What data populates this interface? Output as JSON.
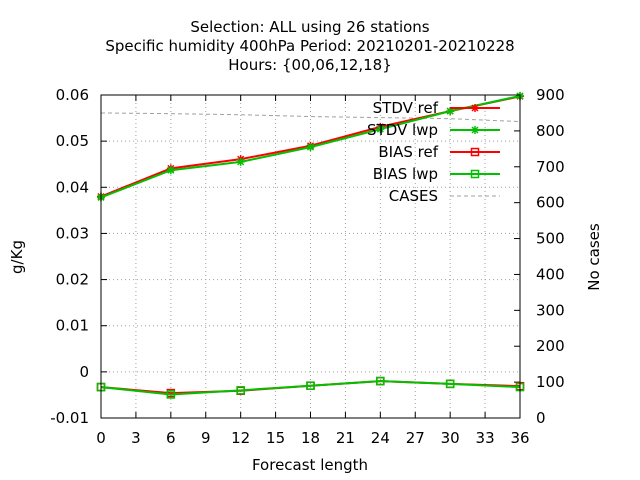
{
  "chart_data": {
    "type": "line",
    "title_lines": [
      "Selection: ALL using    26 stations",
      "Specific humidity 400hPa   Period: 20210201-20210228",
      "Hours: {00,06,12,18}"
    ],
    "xlabel": "Forecast length",
    "ylabel": "g/Kg",
    "y2label": "No cases",
    "x_ticks": [
      "0",
      "3",
      "6",
      "9",
      "12",
      "15",
      "18",
      "21",
      "24",
      "27",
      "30",
      "33",
      "36"
    ],
    "y_ticks": [
      "-0.01",
      "0",
      "0.01",
      "0.02",
      "0.03",
      "0.04",
      "0.05",
      "0.06"
    ],
    "y2_ticks": [
      "0",
      "100",
      "200",
      "300",
      "400",
      "500",
      "600",
      "700",
      "800",
      "900"
    ],
    "xlim": [
      0,
      36
    ],
    "ylim": [
      -0.01,
      0.06
    ],
    "y2lim": [
      0,
      900
    ],
    "grid": true,
    "legend_position": "top-right",
    "series": [
      {
        "name": "STDV ref",
        "color": "#ff0000",
        "marker": "star",
        "dash": "",
        "axis": "y",
        "x": [
          0,
          6,
          12,
          18,
          24,
          30,
          36
        ],
        "values": [
          0.038,
          0.0441,
          0.0461,
          0.049,
          0.0531,
          0.0565,
          0.0597
        ]
      },
      {
        "name": "STDV lwp",
        "color": "#00c000",
        "marker": "star",
        "dash": "",
        "axis": "y",
        "x": [
          0,
          6,
          12,
          18,
          24,
          30,
          36
        ],
        "values": [
          0.0378,
          0.0437,
          0.0455,
          0.0487,
          0.0526,
          0.0565,
          0.0598
        ]
      },
      {
        "name": "BIAS ref",
        "color": "#ff0000",
        "marker": "square",
        "dash": "",
        "axis": "y",
        "x": [
          0,
          6,
          12,
          18,
          24,
          30,
          36
        ],
        "values": [
          -0.0033,
          -0.0046,
          -0.0041,
          -0.003,
          -0.002,
          -0.0026,
          -0.0031
        ]
      },
      {
        "name": "BIAS lwp",
        "color": "#00c000",
        "marker": "square",
        "dash": "",
        "axis": "y",
        "x": [
          0,
          6,
          12,
          18,
          24,
          30,
          36
        ],
        "values": [
          -0.0033,
          -0.0049,
          -0.004,
          -0.003,
          -0.002,
          -0.0026,
          -0.0033
        ]
      },
      {
        "name": "CASES",
        "color": "#a0a0a0",
        "marker": "none",
        "dash": "4 3",
        "axis": "y2",
        "x": [
          0,
          6,
          12,
          18,
          24,
          30,
          36
        ],
        "values": [
          850,
          848,
          845,
          840,
          837,
          834,
          826
        ]
      }
    ]
  }
}
